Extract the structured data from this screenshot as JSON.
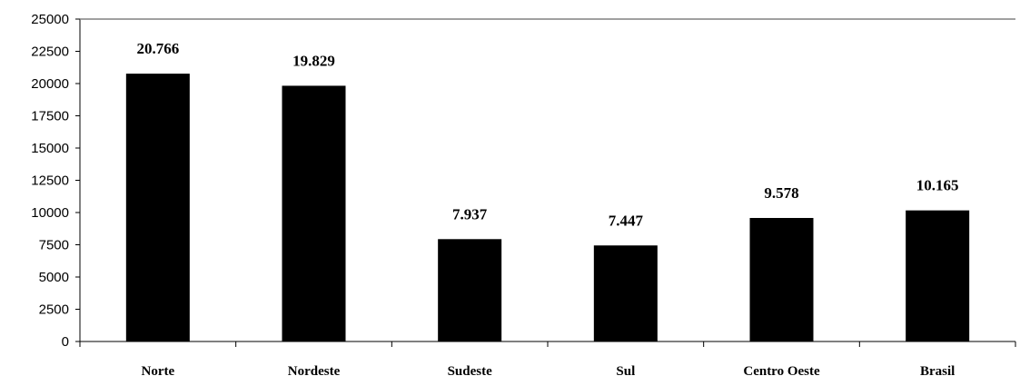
{
  "chart_data": {
    "type": "bar",
    "title": "",
    "xlabel": "",
    "ylabel": "",
    "categories": [
      "Norte",
      "Nordeste",
      "Sudeste",
      "Sul",
      "Centro Oeste",
      "Brasil"
    ],
    "values": [
      20766,
      19829,
      7937,
      7447,
      9578,
      10165
    ],
    "data_labels": [
      "20.766",
      "19.829",
      "7.937",
      "7.447",
      "9.578",
      "10.165"
    ],
    "ylim": [
      0,
      25000
    ],
    "yticks": [
      0,
      2500,
      5000,
      7500,
      10000,
      12500,
      15000,
      17500,
      20000,
      22500,
      25000
    ],
    "ytick_labels": [
      "0",
      "2500",
      "5000",
      "7500",
      "10000",
      "12500",
      "15000",
      "17500",
      "20000",
      "22500",
      "25000"
    ],
    "grid": false,
    "legend": "none",
    "bar_color": "#000000",
    "axis_color": "#808080"
  }
}
